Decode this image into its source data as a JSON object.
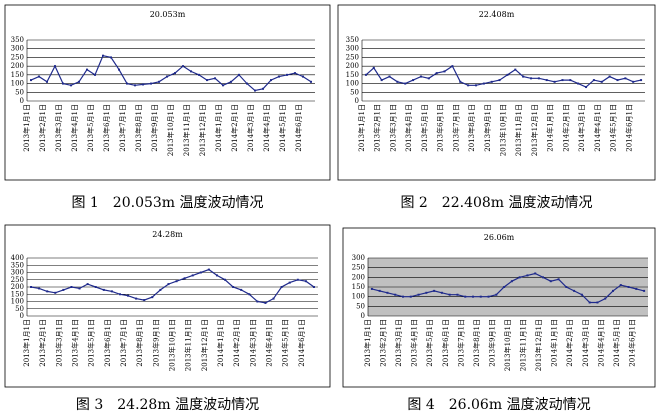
{
  "chart_data": [
    {
      "type": "line",
      "title": "20.053m",
      "caption": "图 1　20.053m 温度波动情况",
      "categories": [
        "2013年1月1日",
        null,
        "2013年2月1日",
        null,
        "2013年3月1日",
        null,
        "2013年4月1日",
        null,
        "2013年5月1日",
        null,
        "2013年6月1日",
        null,
        "2013年7月1日",
        null,
        "2013年8月1日",
        null,
        "2013年9月1日",
        null,
        "2013年10月1日",
        null,
        "2013年11月1日",
        null,
        "2013年12月1日",
        null,
        "2014年1月1日",
        null,
        "2014年2月1日",
        null,
        "2014年3月1日",
        null,
        "2014年4月1日",
        null,
        "2014年5月1日",
        null,
        "2014年6月1日",
        null
      ],
      "color": "#1f2a8c",
      "values": [
        120,
        140,
        110,
        200,
        100,
        90,
        110,
        180,
        150,
        260,
        250,
        180,
        100,
        90,
        95,
        100,
        110,
        140,
        160,
        200,
        170,
        150,
        120,
        130,
        90,
        110,
        150,
        100,
        60,
        70,
        120,
        140,
        150,
        160,
        140,
        110
      ],
      "ylim": [
        0,
        350
      ],
      "yticks": [
        0,
        50,
        100,
        150,
        200,
        250,
        300,
        350
      ],
      "grid": true
    },
    {
      "type": "line",
      "title": "22.408m",
      "caption": "图 2　22.408m 温度波动情况",
      "categories": [
        "2013年1月1日",
        null,
        "2013年2月1日",
        null,
        "2013年3月1日",
        null,
        "2013年4月1日",
        null,
        "2013年5月1日",
        null,
        "2013年6月1日",
        null,
        "2013年7月1日",
        null,
        "2013年8月1日",
        null,
        "2013年9月1日",
        null,
        "2013年10月1日",
        null,
        "2013年11月1日",
        null,
        "2013年12月1日",
        null,
        "2014年1月1日",
        null,
        "2014年2月1日",
        null,
        "2014年3月1日",
        null,
        "2014年4月1日",
        null,
        "2014年5月1日",
        null,
        "2014年6月1日",
        null
      ],
      "color": "#1f2a8c",
      "values": [
        150,
        190,
        120,
        140,
        110,
        100,
        120,
        140,
        130,
        160,
        170,
        200,
        110,
        90,
        90,
        100,
        110,
        120,
        150,
        180,
        140,
        130,
        130,
        120,
        110,
        120,
        120,
        100,
        80,
        120,
        110,
        140,
        120,
        130,
        110,
        120
      ],
      "ylim": [
        0,
        350
      ],
      "yticks": [
        0,
        50,
        100,
        150,
        200,
        250,
        300,
        350
      ],
      "grid": true
    },
    {
      "type": "line",
      "title": "24.28m",
      "caption": "图 3　24.28m 温度波动情况",
      "categories": [
        "2013年1月1日",
        null,
        "2013年2月1日",
        null,
        "2013年3月1日",
        null,
        "2013年4月1日",
        null,
        "2013年5月1日",
        null,
        "2013年6月1日",
        null,
        "2013年7月1日",
        null,
        "2013年8月1日",
        null,
        "2013年9月1日",
        null,
        "2013年10月1日",
        null,
        "2013年11月1日",
        null,
        "2013年12月1日",
        null,
        "2014年1月1日",
        null,
        "2014年2月1日",
        null,
        "2014年3月1日",
        null,
        "2014年4月1日",
        null,
        "2014年5月1日",
        null,
        "2014年6月1日",
        null
      ],
      "color": "#1f2a8c",
      "values": [
        200,
        190,
        170,
        160,
        180,
        200,
        190,
        220,
        200,
        180,
        170,
        150,
        140,
        120,
        110,
        130,
        180,
        220,
        240,
        260,
        280,
        300,
        320,
        280,
        250,
        200,
        180,
        150,
        100,
        90,
        120,
        200,
        230,
        250,
        240,
        200
      ],
      "ylim": [
        0,
        400
      ],
      "yticks": [
        0,
        50,
        100,
        150,
        200,
        250,
        300,
        350,
        400
      ],
      "grid": true
    },
    {
      "type": "line",
      "title": "26.06m",
      "caption": "图 4　26.06m 温度波动情况",
      "categories": [
        "2013年1月1日",
        null,
        "2013年2月1日",
        null,
        "2013年3月1日",
        null,
        "2013年4月1日",
        null,
        "2013年5月1日",
        null,
        "2013年6月1日",
        null,
        "2013年7月1日",
        null,
        "2013年8月1日",
        null,
        "2013年9月1日",
        null,
        "2013年10月1日",
        null,
        "2013年11月1日",
        null,
        "2013年12月1日",
        null,
        "2014年1月1日",
        null,
        "2014年2月1日",
        null,
        "2014年3月1日",
        null,
        "2014年4月1日",
        null,
        "2014年5月1日",
        null,
        "2014年6月1日",
        null
      ],
      "color": "#1f2a8c",
      "plot_background": "#c0c0c0",
      "values": [
        140,
        130,
        120,
        110,
        100,
        100,
        110,
        120,
        130,
        120,
        110,
        110,
        100,
        100,
        100,
        100,
        110,
        150,
        180,
        200,
        210,
        220,
        200,
        180,
        190,
        150,
        130,
        110,
        70,
        70,
        90,
        130,
        160,
        150,
        140,
        130
      ],
      "ylim": [
        0,
        300
      ],
      "yticks": [
        0,
        50,
        100,
        150,
        200,
        250,
        300
      ],
      "grid": true
    }
  ]
}
